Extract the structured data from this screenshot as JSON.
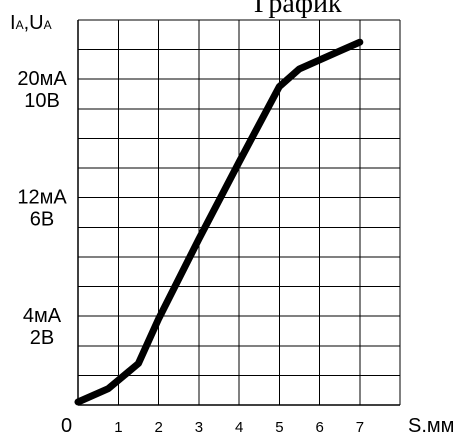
{
  "chart_data": {
    "type": "line",
    "title": "График",
    "ylabel": "IA,UA",
    "xlabel": "S.мм",
    "origin_label": "0",
    "x_ticks": [
      {
        "value": 1,
        "label": "1"
      },
      {
        "value": 2,
        "label": "2"
      },
      {
        "value": 3,
        "label": "3"
      },
      {
        "value": 4,
        "label": "4"
      },
      {
        "value": 5,
        "label": "5"
      },
      {
        "value": 6,
        "label": "6"
      },
      {
        "value": 7,
        "label": "7"
      }
    ],
    "y_ticks": [
      {
        "value": 2,
        "label_1": "4мА",
        "label_2": "2В"
      },
      {
        "value": 6,
        "label_1": "12мА",
        "label_2": "6В"
      },
      {
        "value": 10,
        "label_1": "20мА",
        "label_2": "10В"
      }
    ],
    "xlim": [
      0,
      8
    ],
    "ylim": [
      0,
      13
    ],
    "grid": true,
    "series": [
      {
        "x": [
          0,
          0.75,
          1.5,
          2,
          3,
          4,
          5,
          5.5,
          6.5,
          7
        ],
        "y": [
          0.1,
          0.55,
          1.4,
          2.9,
          5.6,
          8.2,
          10.75,
          11.35,
          11.95,
          12.25
        ]
      }
    ]
  }
}
